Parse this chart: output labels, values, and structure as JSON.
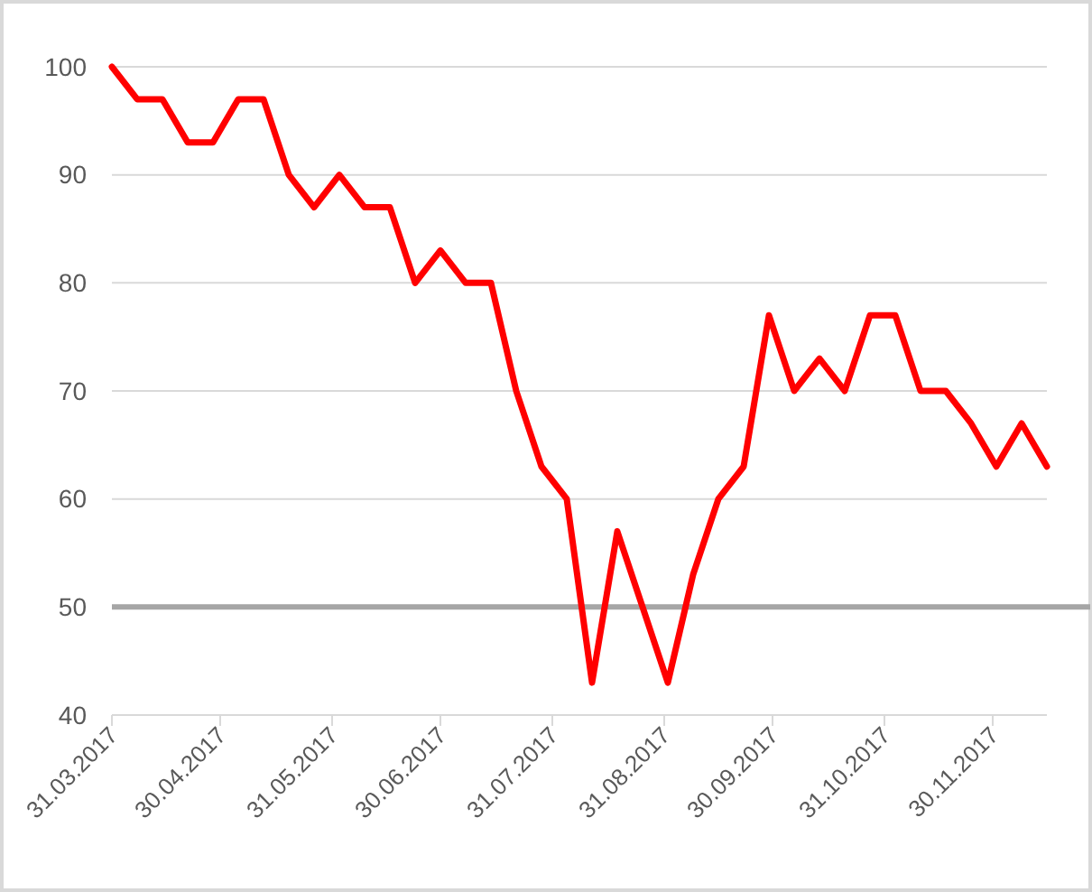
{
  "chart_data": {
    "type": "line",
    "x": [
      "2017-03-31",
      "2017-04-07",
      "2017-04-14",
      "2017-04-21",
      "2017-04-28",
      "2017-05-05",
      "2017-05-12",
      "2017-05-19",
      "2017-05-26",
      "2017-06-02",
      "2017-06-09",
      "2017-06-16",
      "2017-06-23",
      "2017-06-30",
      "2017-07-07",
      "2017-07-14",
      "2017-07-21",
      "2017-07-28",
      "2017-08-04",
      "2017-08-11",
      "2017-08-18",
      "2017-08-25",
      "2017-09-01",
      "2017-09-08",
      "2017-09-15",
      "2017-09-22",
      "2017-09-29",
      "2017-10-06",
      "2017-10-13",
      "2017-10-20",
      "2017-10-27",
      "2017-11-03",
      "2017-11-10",
      "2017-11-17",
      "2017-11-24",
      "2017-12-01",
      "2017-12-08",
      "2017-12-15"
    ],
    "series": [
      {
        "color": "#ff0000",
        "values": [
          100,
          97,
          97,
          93,
          93,
          97,
          97,
          90,
          87,
          90,
          87,
          87,
          80,
          83,
          80,
          80,
          70,
          63,
          60,
          43,
          57,
          50,
          43,
          53,
          60,
          63,
          77,
          70,
          73,
          70,
          77,
          77,
          70,
          70,
          67,
          63,
          67,
          63
        ]
      }
    ],
    "xlim": [
      "2017-03-31",
      "2017-12-15"
    ],
    "xticks": [
      {
        "value": "2017-03-31",
        "label": "31.03.2017"
      },
      {
        "value": "2017-04-30",
        "label": "30.04.2017"
      },
      {
        "value": "2017-05-31",
        "label": "31.05.2017"
      },
      {
        "value": "2017-06-30",
        "label": "30.06.2017"
      },
      {
        "value": "2017-07-31",
        "label": "31.07.2017"
      },
      {
        "value": "2017-08-31",
        "label": "31.08.2017"
      },
      {
        "value": "2017-09-30",
        "label": "30.09.2017"
      },
      {
        "value": "2017-10-31",
        "label": "31.10.2017"
      },
      {
        "value": "2017-11-30",
        "label": "30.11.2017"
      }
    ],
    "ylim": [
      40,
      100
    ],
    "yticks": [
      40,
      50,
      60,
      70,
      80,
      90,
      100
    ],
    "grid": "y",
    "ref_lines": [
      {
        "axis": "y",
        "value": 50,
        "color": "#a6a6a6"
      }
    ],
    "line_style": "solid",
    "marker": "none"
  }
}
